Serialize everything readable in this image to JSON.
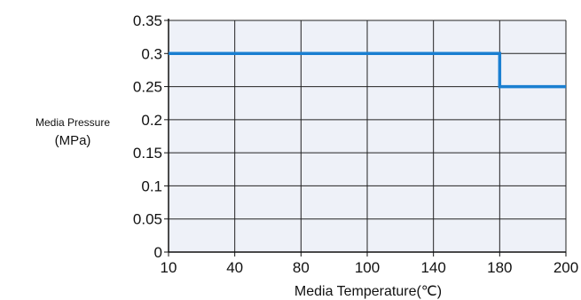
{
  "chart_data": {
    "type": "line",
    "xlabel": "Media Temperature(℃)",
    "ylabel_line1": "Media Pressure",
    "ylabel_line2": "(MPa)",
    "x_tick_labels": [
      "10",
      "40",
      "80",
      "100",
      "140",
      "180",
      "200"
    ],
    "y_tick_labels": [
      "0",
      "0.05",
      "0.1",
      "0.15",
      "0.2",
      "0.25",
      "0.3",
      "0.35"
    ],
    "y_tick_values": [
      0,
      0.05,
      0.1,
      0.15,
      0.2,
      0.25,
      0.3,
      0.35
    ],
    "ylim": [
      0,
      0.35
    ],
    "grid": true,
    "series": [
      {
        "points": [
          {
            "x": "10",
            "y": 0.3
          },
          {
            "x": "180",
            "y": 0.3
          },
          {
            "x": "180",
            "y": 0.25
          },
          {
            "x": "200",
            "y": 0.25
          }
        ]
      }
    ],
    "colors": {
      "line": "#1a7fd1",
      "plot_background": "#eef1f8",
      "grid": "#222222"
    }
  }
}
